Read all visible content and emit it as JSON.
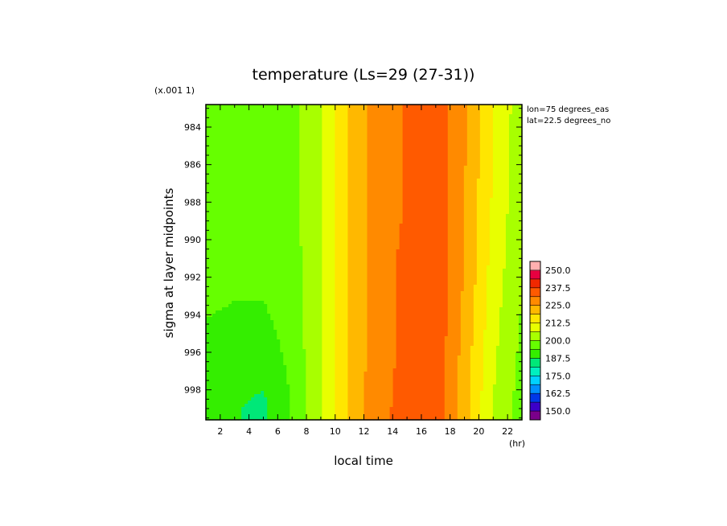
{
  "chart_data": {
    "type": "heatmap",
    "title": "temperature (Ls=29 (27-31))",
    "xlabel": "local time",
    "ylabel": "sigma at layer midpoints",
    "x_unit_label": "(hr)",
    "y_scale_label": "(x.001 1)",
    "annotations": [
      "lon=75 degrees_eas",
      "lat=22.5 degrees_no"
    ],
    "xlim": [
      1,
      23
    ],
    "ylim": [
      982.8,
      999.6
    ],
    "y_inverted": true,
    "x_ticks": [
      2,
      4,
      6,
      8,
      10,
      12,
      14,
      16,
      18,
      20,
      22
    ],
    "y_ticks": [
      984,
      986,
      988,
      990,
      992,
      994,
      996,
      998
    ],
    "colorbar": {
      "min": 143.75,
      "max": 256.25,
      "step": 6.25,
      "labels": [
        "250.0",
        "237.5",
        "225.0",
        "212.5",
        "200.0",
        "187.5",
        "175.0",
        "162.5",
        "150.0"
      ],
      "label_values": [
        250.0,
        237.5,
        225.0,
        212.5,
        200.0,
        187.5,
        175.0,
        162.5,
        150.0
      ],
      "colors": [
        "#7a008a",
        "#3c00c8",
        "#0038e8",
        "#0090ff",
        "#00d2ff",
        "#00f0c0",
        "#00e878",
        "#34ee00",
        "#66ff00",
        "#a8ff00",
        "#e8ff00",
        "#ffe600",
        "#ffb800",
        "#ff8a00",
        "#ff5a00",
        "#f02800",
        "#e80040",
        "#ffb0b0"
      ]
    },
    "x": [
      1,
      3,
      5,
      7,
      9,
      11,
      13,
      15,
      17,
      19,
      21,
      23
    ],
    "y": [
      983.0,
      985.0,
      987.0,
      989.0,
      991.0,
      993.0,
      995.0,
      997.0,
      999.0
    ],
    "z": [
      [
        198,
        197,
        198,
        198,
        206,
        220,
        228,
        232,
        235,
        226,
        213,
        202
      ],
      [
        198,
        197,
        198,
        198,
        206,
        220,
        228,
        232,
        235,
        226,
        212,
        202
      ],
      [
        198,
        197,
        198,
        198,
        206,
        220,
        228,
        232,
        235,
        225,
        212,
        202
      ],
      [
        197,
        196,
        197,
        198,
        206,
        220,
        228,
        232,
        235,
        225,
        211,
        201
      ],
      [
        196,
        195,
        196,
        197,
        206,
        220,
        228,
        233,
        235,
        225,
        210,
        201
      ],
      [
        195,
        194,
        194,
        197,
        206,
        220,
        228,
        233,
        236,
        224,
        209,
        200
      ],
      [
        193,
        192,
        192,
        196,
        206,
        220,
        228,
        233,
        236,
        223,
        208,
        199
      ],
      [
        192,
        190,
        189,
        195,
        206,
        220,
        229,
        233,
        236,
        222,
        207,
        198
      ],
      [
        190,
        188,
        186,
        194,
        206,
        220,
        229,
        234,
        236,
        221,
        206,
        197
      ]
    ]
  }
}
